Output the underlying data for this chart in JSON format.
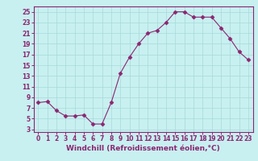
{
  "x": [
    0,
    1,
    2,
    3,
    4,
    5,
    6,
    7,
    8,
    9,
    10,
    11,
    12,
    13,
    14,
    15,
    16,
    17,
    18,
    19,
    20,
    21,
    22,
    23
  ],
  "y": [
    8,
    8.2,
    6.5,
    5.5,
    5.5,
    5.7,
    4.0,
    4.0,
    8.0,
    13.5,
    16.5,
    19.0,
    21.0,
    21.5,
    23.0,
    25.0,
    25.0,
    24.0,
    24.0,
    24.0,
    22.0,
    20.0,
    17.5,
    16.0
  ],
  "line_color": "#8B2672",
  "marker": "D",
  "marker_size": 2.5,
  "bg_color": "#c8f0f0",
  "grid_color": "#a8d8d8",
  "xlabel": "Windchill (Refroidissement éolien,°C)",
  "xlim": [
    -0.5,
    23.5
  ],
  "ylim": [
    2.5,
    26.0
  ],
  "yticks": [
    3,
    5,
    7,
    9,
    11,
    13,
    15,
    17,
    19,
    21,
    23,
    25
  ],
  "xticks": [
    0,
    1,
    2,
    3,
    4,
    5,
    6,
    7,
    8,
    9,
    10,
    11,
    12,
    13,
    14,
    15,
    16,
    17,
    18,
    19,
    20,
    21,
    22,
    23
  ],
  "tick_label_size": 5.5,
  "xlabel_size": 6.5,
  "label_color": "#8B2672"
}
